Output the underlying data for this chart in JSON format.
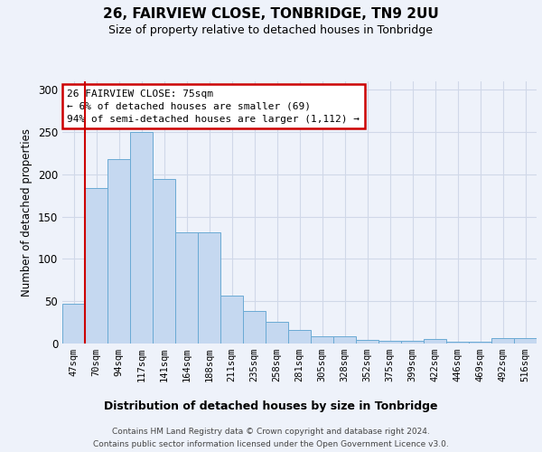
{
  "title": "26, FAIRVIEW CLOSE, TONBRIDGE, TN9 2UU",
  "subtitle": "Size of property relative to detached houses in Tonbridge",
  "xlabel": "Distribution of detached houses by size in Tonbridge",
  "ylabel": "Number of detached properties",
  "footer_line1": "Contains HM Land Registry data © Crown copyright and database right 2024.",
  "footer_line2": "Contains public sector information licensed under the Open Government Licence v3.0.",
  "categories": [
    "47sqm",
    "70sqm",
    "94sqm",
    "117sqm",
    "141sqm",
    "164sqm",
    "188sqm",
    "211sqm",
    "235sqm",
    "258sqm",
    "281sqm",
    "305sqm",
    "328sqm",
    "352sqm",
    "375sqm",
    "399sqm",
    "422sqm",
    "446sqm",
    "469sqm",
    "492sqm",
    "516sqm"
  ],
  "values": [
    47,
    184,
    218,
    250,
    195,
    131,
    131,
    57,
    38,
    26,
    16,
    9,
    9,
    4,
    3,
    3,
    5,
    2,
    2,
    6,
    6
  ],
  "bar_color": "#c5d8f0",
  "bar_edge_color": "#6aaad4",
  "grid_color": "#d0d8e8",
  "background_color": "#eef2fa",
  "red_line_color": "#cc0000",
  "red_line_x": 0.5,
  "ann_line1": "26 FAIRVIEW CLOSE: 75sqm",
  "ann_line2": "← 6% of detached houses are smaller (69)",
  "ann_line3": "94% of semi-detached houses are larger (1,112) →",
  "ann_box_facecolor": "#ffffff",
  "ann_box_edgecolor": "#cc0000",
  "ylim": [
    0,
    310
  ],
  "yticks": [
    0,
    50,
    100,
    150,
    200,
    250,
    300
  ]
}
